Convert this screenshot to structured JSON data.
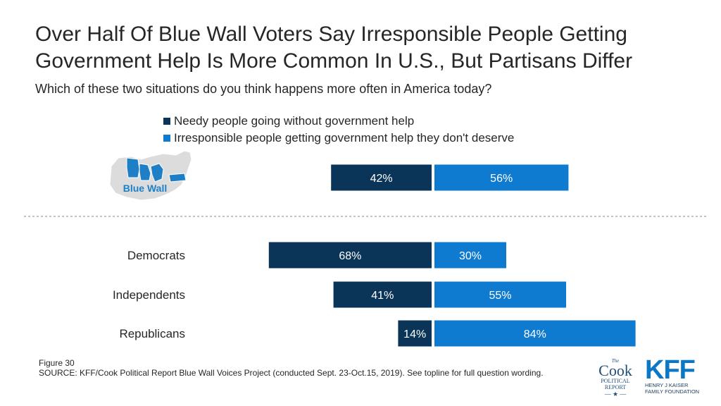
{
  "title": "Over Half Of Blue Wall Voters Say Irresponsible People Getting Government Help Is More Common In U.S., But Partisans Differ",
  "subtitle": "Which of these two situations do you think happens more often in America today?",
  "colors": {
    "needy": "#0b3558",
    "irresponsible": "#0f7bd0",
    "map_grey": "#dcdcdc",
    "map_blue": "#1e7fc6"
  },
  "legend": {
    "needy": "Needy people going without government help",
    "irresponsible": "Irresponsible people getting government help they don't deserve"
  },
  "map": {
    "label": "Blue Wall"
  },
  "chart_data": {
    "type": "bar",
    "orientation": "horizontal-diverging",
    "categories": [
      "Blue Wall",
      "Democrats",
      "Independents",
      "Republicans"
    ],
    "series": [
      {
        "name": "Needy people going without government help",
        "values": [
          42,
          68,
          41,
          14
        ]
      },
      {
        "name": "Irresponsible people getting government help they don't deserve",
        "values": [
          56,
          30,
          55,
          84
        ]
      }
    ],
    "value_suffix": "%",
    "legend_position": "top"
  },
  "footer": {
    "figure": "Figure 30",
    "source": "SOURCE: KFF/Cook Political Report Blue Wall Voices Project (conducted Sept. 23-Oct.15, 2019). See topline for full question wording."
  },
  "logos": {
    "cook": {
      "the": "The",
      "name": "Cook",
      "line1": "POLITICAL",
      "line2": "REPORT"
    },
    "kff": {
      "name": "KFF",
      "line1": "HENRY J KAISER",
      "line2": "FAMILY FOUNDATION"
    }
  }
}
